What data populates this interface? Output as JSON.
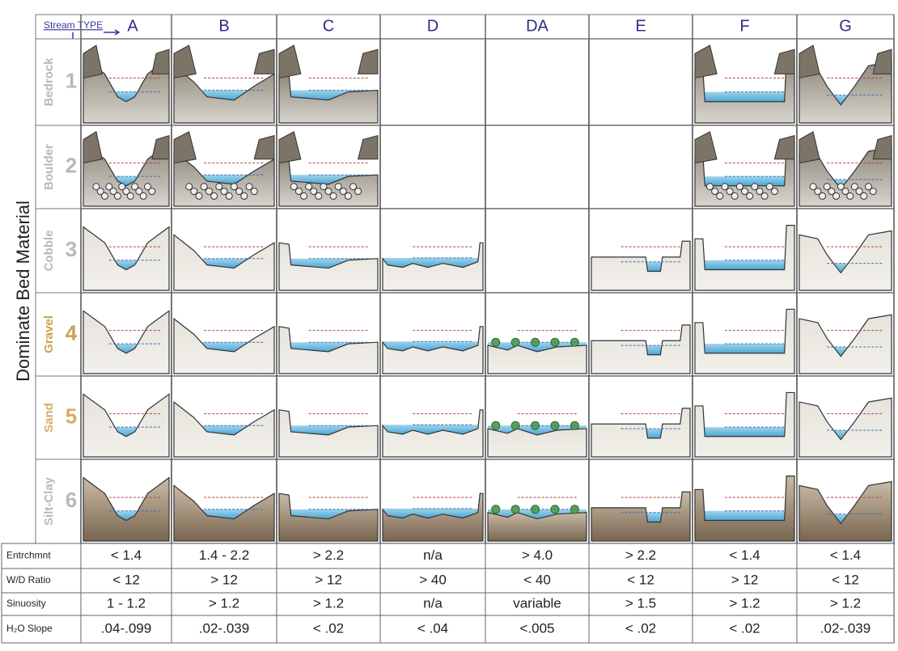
{
  "header": {
    "corner_label": "Stream TYPE",
    "stream_types": [
      "A",
      "B",
      "C",
      "D",
      "DA",
      "E",
      "F",
      "G"
    ]
  },
  "side_title": "Dominate Bed Material",
  "bed_materials": [
    {
      "number": "1",
      "label": "Bedrock"
    },
    {
      "number": "2",
      "label": "Boulder"
    },
    {
      "number": "3",
      "label": "Cobble"
    },
    {
      "number": "4",
      "label": "Gravel"
    },
    {
      "number": "5",
      "label": "Sand"
    },
    {
      "number": "6",
      "label": "Silt-Clay"
    }
  ],
  "criteria": [
    {
      "label": "Entrchmnt",
      "values": [
        "< 1.4",
        "1.4 - 2.2",
        "> 2.2",
        "n/a",
        "> 4.0",
        "> 2.2",
        "< 1.4",
        "< 1.4"
      ]
    },
    {
      "label": "W/D Ratio",
      "values": [
        "< 12",
        "> 12",
        "> 12",
        "> 40",
        "< 40",
        "< 12",
        "> 12",
        "< 12"
      ]
    },
    {
      "label": "Sinuosity",
      "values": [
        "1 - 1.2",
        "> 1.2",
        "> 1.2",
        "n/a",
        "variable",
        "> 1.5",
        "> 1.2",
        "> 1.2"
      ]
    },
    {
      "label": "H₂O Slope",
      "values": [
        ".04-.099",
        ".02-.039",
        "< .02",
        "< .04",
        "<.005",
        "< .02",
        "< .02",
        ".02-.039"
      ]
    }
  ]
}
